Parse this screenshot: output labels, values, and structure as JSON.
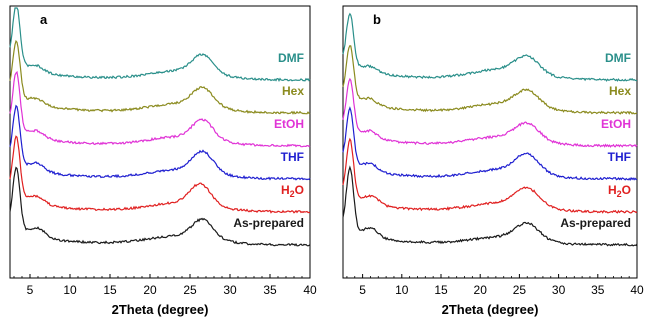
{
  "chart_data": [
    {
      "panel_label": "a",
      "type": "line",
      "xlabel": "2Theta (degree)",
      "ylabel": "",
      "xlim": [
        2.5,
        40
      ],
      "xticks": [
        5,
        10,
        15,
        20,
        25,
        30,
        35,
        40
      ],
      "x_tick_labels": [
        "5",
        "10",
        "15",
        "20",
        "25",
        "30",
        "35",
        "40"
      ],
      "grid": false,
      "y_units": "arbitrary (stacked, offset)",
      "series": [
        {
          "name": "DMF",
          "color": "#2a8f8a",
          "baseline": 5,
          "peaks": [
            {
              "x": 3.3,
              "h": 82,
              "w": 0.45
            },
            {
              "x": 5.8,
              "h": 8,
              "w": 0.9
            },
            {
              "x": 26.6,
              "h": 25,
              "w": 1.3
            },
            {
              "x": 24,
              "h": 12,
              "w": 4
            }
          ]
        },
        {
          "name": "Hex",
          "color": "#8b8b1f",
          "baseline": 4,
          "peaks": [
            {
              "x": 3.3,
              "h": 78,
              "w": 0.45
            },
            {
              "x": 5.8,
              "h": 8,
              "w": 0.9
            },
            {
              "x": 26.6,
              "h": 25,
              "w": 1.3
            },
            {
              "x": 24,
              "h": 12,
              "w": 4
            }
          ]
        },
        {
          "name": "EtOH",
          "color": "#e033d6",
          "baseline": 3,
          "peaks": [
            {
              "x": 3.3,
              "h": 80,
              "w": 0.45
            },
            {
              "x": 5.9,
              "h": 9,
              "w": 0.9
            },
            {
              "x": 26.6,
              "h": 26,
              "w": 1.3
            },
            {
              "x": 24,
              "h": 12,
              "w": 4
            }
          ]
        },
        {
          "name": "THF",
          "color": "#1f1fd0",
          "baseline": 2,
          "peaks": [
            {
              "x": 3.3,
              "h": 78,
              "w": 0.45
            },
            {
              "x": 5.9,
              "h": 10,
              "w": 0.9
            },
            {
              "x": 26.6,
              "h": 28,
              "w": 1.3
            },
            {
              "x": 24,
              "h": 12,
              "w": 4
            }
          ]
        },
        {
          "name": "H2O",
          "color": "#e02020",
          "baseline": 1,
          "peaks": [
            {
              "x": 3.3,
              "h": 82,
              "w": 0.45
            },
            {
              "x": 5.9,
              "h": 10,
              "w": 0.9
            },
            {
              "x": 26.3,
              "h": 28,
              "w": 1.3
            },
            {
              "x": 24,
              "h": 12,
              "w": 4
            }
          ]
        },
        {
          "name": "As-prepared",
          "color": "#1a1a1a",
          "baseline": 0,
          "peaks": [
            {
              "x": 3.3,
              "h": 85,
              "w": 0.45
            },
            {
              "x": 6.0,
              "h": 12,
              "w": 0.9
            },
            {
              "x": 26.6,
              "h": 25,
              "w": 1.3
            },
            {
              "x": 24,
              "h": 12,
              "w": 4
            }
          ]
        }
      ]
    },
    {
      "panel_label": "b",
      "type": "line",
      "xlabel": "2Theta (degree)",
      "ylabel": "",
      "xlim": [
        2.5,
        40
      ],
      "xticks": [
        5,
        10,
        15,
        20,
        25,
        30,
        35,
        40
      ],
      "x_tick_labels": [
        "5",
        "10",
        "15",
        "20",
        "25",
        "30",
        "35",
        "40"
      ],
      "grid": false,
      "y_units": "arbitrary (stacked, offset)",
      "series": [
        {
          "name": "DMF",
          "color": "#2a8f8a",
          "baseline": 5,
          "peaks": [
            {
              "x": 3.4,
              "h": 70,
              "w": 0.45
            },
            {
              "x": 6.0,
              "h": 7,
              "w": 0.9
            },
            {
              "x": 26.0,
              "h": 22,
              "w": 1.5
            },
            {
              "x": 23,
              "h": 14,
              "w": 4
            }
          ]
        },
        {
          "name": "Hex",
          "color": "#8b8b1f",
          "baseline": 4,
          "peaks": [
            {
              "x": 3.4,
              "h": 72,
              "w": 0.45
            },
            {
              "x": 5.9,
              "h": 8,
              "w": 0.9
            },
            {
              "x": 26.0,
              "h": 22,
              "w": 1.5
            },
            {
              "x": 23,
              "h": 12,
              "w": 4
            }
          ]
        },
        {
          "name": "EtOH",
          "color": "#e033d6",
          "baseline": 3,
          "peaks": [
            {
              "x": 3.4,
              "h": 72,
              "w": 0.45
            },
            {
              "x": 6.0,
              "h": 9,
              "w": 0.9
            },
            {
              "x": 26.0,
              "h": 22,
              "w": 1.5
            },
            {
              "x": 23,
              "h": 12,
              "w": 4
            }
          ]
        },
        {
          "name": "THF",
          "color": "#1f1fd0",
          "baseline": 2,
          "peaks": [
            {
              "x": 3.4,
              "h": 75,
              "w": 0.45
            },
            {
              "x": 6.0,
              "h": 10,
              "w": 0.9
            },
            {
              "x": 26.0,
              "h": 25,
              "w": 1.5
            },
            {
              "x": 23,
              "h": 12,
              "w": 4
            }
          ]
        },
        {
          "name": "H2O",
          "color": "#e02020",
          "baseline": 1,
          "peaks": [
            {
              "x": 3.4,
              "h": 78,
              "w": 0.45
            },
            {
              "x": 6.2,
              "h": 11,
              "w": 0.9
            },
            {
              "x": 26.0,
              "h": 24,
              "w": 1.5
            },
            {
              "x": 23,
              "h": 12,
              "w": 4
            }
          ]
        },
        {
          "name": "As-prepared",
          "color": "#1a1a1a",
          "baseline": 0,
          "peaks": [
            {
              "x": 3.4,
              "h": 85,
              "w": 0.45
            },
            {
              "x": 6.1,
              "h": 12,
              "w": 0.9
            },
            {
              "x": 26.0,
              "h": 22,
              "w": 1.5
            },
            {
              "x": 23,
              "h": 10,
              "w": 4
            }
          ]
        }
      ]
    }
  ]
}
